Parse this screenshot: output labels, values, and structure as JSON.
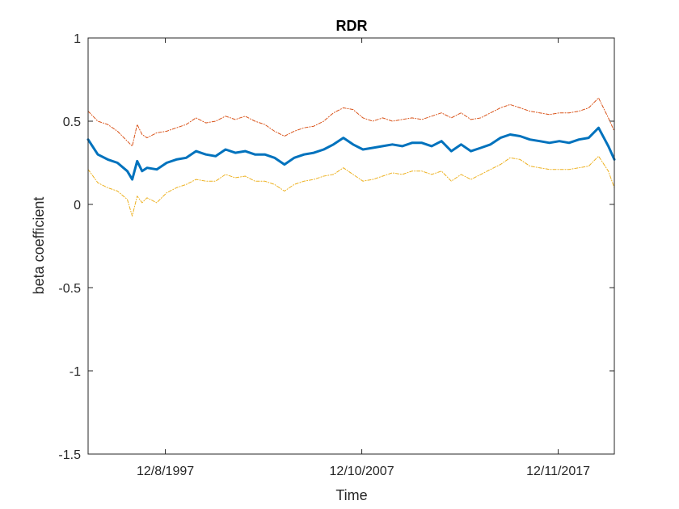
{
  "chart_data": {
    "type": "line",
    "title": "RDR",
    "xlabel": "Time",
    "ylabel": "beta coefficient",
    "x_range": [
      "1994-01-01",
      "2020-10-20"
    ],
    "x_ticks": [
      {
        "date": "1997-12-08",
        "label": "12/8/1997"
      },
      {
        "date": "2007-12-10",
        "label": "12/10/2007"
      },
      {
        "date": "2017-12-11",
        "label": "12/11/2017"
      }
    ],
    "ylim": [
      -1.5,
      1
    ],
    "y_ticks": [
      {
        "value": 1,
        "label": "1"
      },
      {
        "value": 0.5,
        "label": "0.5"
      },
      {
        "value": 0,
        "label": "0"
      },
      {
        "value": -0.5,
        "label": "-0.5"
      },
      {
        "value": -1,
        "label": "-1"
      },
      {
        "value": -1.5,
        "label": "-1.5"
      }
    ],
    "grid": false,
    "legend": "none",
    "x": [
      "1994-01-01",
      "1994-07-01",
      "1995-01-01",
      "1995-07-01",
      "1996-01-01",
      "1996-04-01",
      "1996-07-01",
      "1996-10-01",
      "1997-01-01",
      "1997-07-01",
      "1998-01-01",
      "1998-07-01",
      "1999-01-01",
      "1999-07-01",
      "2000-01-01",
      "2000-07-01",
      "2001-01-01",
      "2001-07-01",
      "2002-01-01",
      "2002-07-01",
      "2003-01-01",
      "2003-07-01",
      "2004-01-01",
      "2004-07-01",
      "2005-01-01",
      "2005-07-01",
      "2006-01-01",
      "2006-07-01",
      "2007-01-01",
      "2007-07-01",
      "2008-01-01",
      "2008-07-01",
      "2009-01-01",
      "2009-07-01",
      "2010-01-01",
      "2010-07-01",
      "2011-01-01",
      "2011-07-01",
      "2012-01-01",
      "2012-07-01",
      "2013-01-01",
      "2013-07-01",
      "2014-01-01",
      "2014-07-01",
      "2015-01-01",
      "2015-07-01",
      "2016-01-01",
      "2016-07-01",
      "2017-01-01",
      "2017-07-01",
      "2018-01-01",
      "2018-07-01",
      "2019-01-01",
      "2019-07-01",
      "2020-01-01",
      "2020-07-01",
      "2020-10-20"
    ],
    "series": [
      {
        "color": "#D95319",
        "style": "dash-dot",
        "width": 1,
        "values": [
          0.56,
          0.5,
          0.48,
          0.44,
          0.38,
          0.35,
          0.48,
          0.42,
          0.4,
          0.43,
          0.44,
          0.46,
          0.48,
          0.52,
          0.49,
          0.5,
          0.53,
          0.51,
          0.53,
          0.5,
          0.48,
          0.44,
          0.41,
          0.44,
          0.46,
          0.47,
          0.5,
          0.55,
          0.58,
          0.57,
          0.52,
          0.5,
          0.52,
          0.5,
          0.51,
          0.52,
          0.51,
          0.53,
          0.55,
          0.52,
          0.55,
          0.51,
          0.52,
          0.55,
          0.58,
          0.6,
          0.58,
          0.56,
          0.55,
          0.54,
          0.55,
          0.55,
          0.56,
          0.58,
          0.64,
          0.52,
          0.44
        ]
      },
      {
        "color": "#0072BD",
        "style": "solid",
        "width": 3,
        "values": [
          0.39,
          0.3,
          0.27,
          0.25,
          0.2,
          0.15,
          0.26,
          0.2,
          0.22,
          0.21,
          0.25,
          0.27,
          0.28,
          0.32,
          0.3,
          0.29,
          0.33,
          0.31,
          0.32,
          0.3,
          0.3,
          0.28,
          0.24,
          0.28,
          0.3,
          0.31,
          0.33,
          0.36,
          0.4,
          0.36,
          0.33,
          0.34,
          0.35,
          0.36,
          0.35,
          0.37,
          0.37,
          0.35,
          0.38,
          0.32,
          0.36,
          0.32,
          0.34,
          0.36,
          0.4,
          0.42,
          0.41,
          0.39,
          0.38,
          0.37,
          0.38,
          0.37,
          0.39,
          0.4,
          0.46,
          0.35,
          0.27
        ]
      },
      {
        "color": "#EDB120",
        "style": "dash-dot",
        "width": 1,
        "values": [
          0.21,
          0.13,
          0.1,
          0.08,
          0.03,
          -0.07,
          0.05,
          0.01,
          0.04,
          0.01,
          0.07,
          0.1,
          0.12,
          0.15,
          0.14,
          0.14,
          0.18,
          0.16,
          0.17,
          0.14,
          0.14,
          0.12,
          0.08,
          0.12,
          0.14,
          0.15,
          0.17,
          0.18,
          0.22,
          0.18,
          0.14,
          0.15,
          0.17,
          0.19,
          0.18,
          0.2,
          0.2,
          0.18,
          0.2,
          0.14,
          0.18,
          0.15,
          0.18,
          0.21,
          0.24,
          0.28,
          0.27,
          0.23,
          0.22,
          0.21,
          0.21,
          0.21,
          0.22,
          0.23,
          0.29,
          0.2,
          0.1
        ]
      }
    ]
  }
}
